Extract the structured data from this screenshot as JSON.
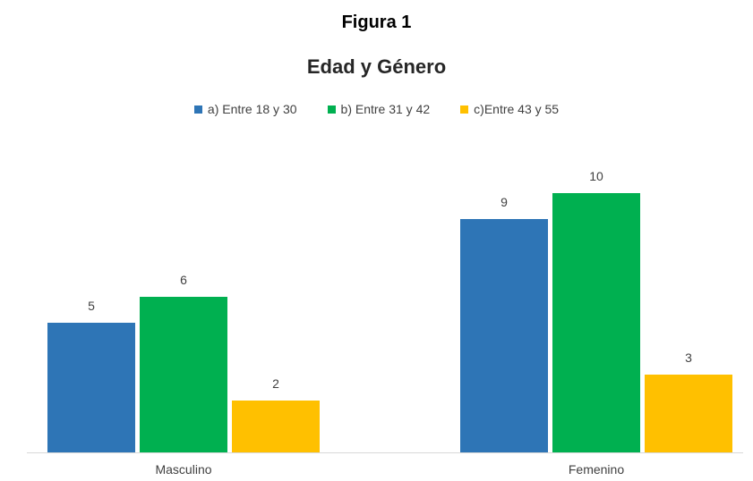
{
  "figure_label": "Figura 1",
  "chart_data": {
    "type": "bar",
    "title": "Edad y Género",
    "categories": [
      "Masculino",
      "Femenino"
    ],
    "series": [
      {
        "name": "a) Entre 18 y 30",
        "color": "#2E75B6",
        "values": [
          5,
          9
        ]
      },
      {
        "name": "b) Entre 31 y 42",
        "color": "#00B050",
        "values": [
          6,
          10
        ]
      },
      {
        "name": "c)Entre 43 y 55",
        "color": "#FFC000",
        "values": [
          2,
          3
        ]
      }
    ],
    "ylim": [
      0,
      12
    ],
    "grid": false,
    "legend_position": "top",
    "data_labels": true
  }
}
